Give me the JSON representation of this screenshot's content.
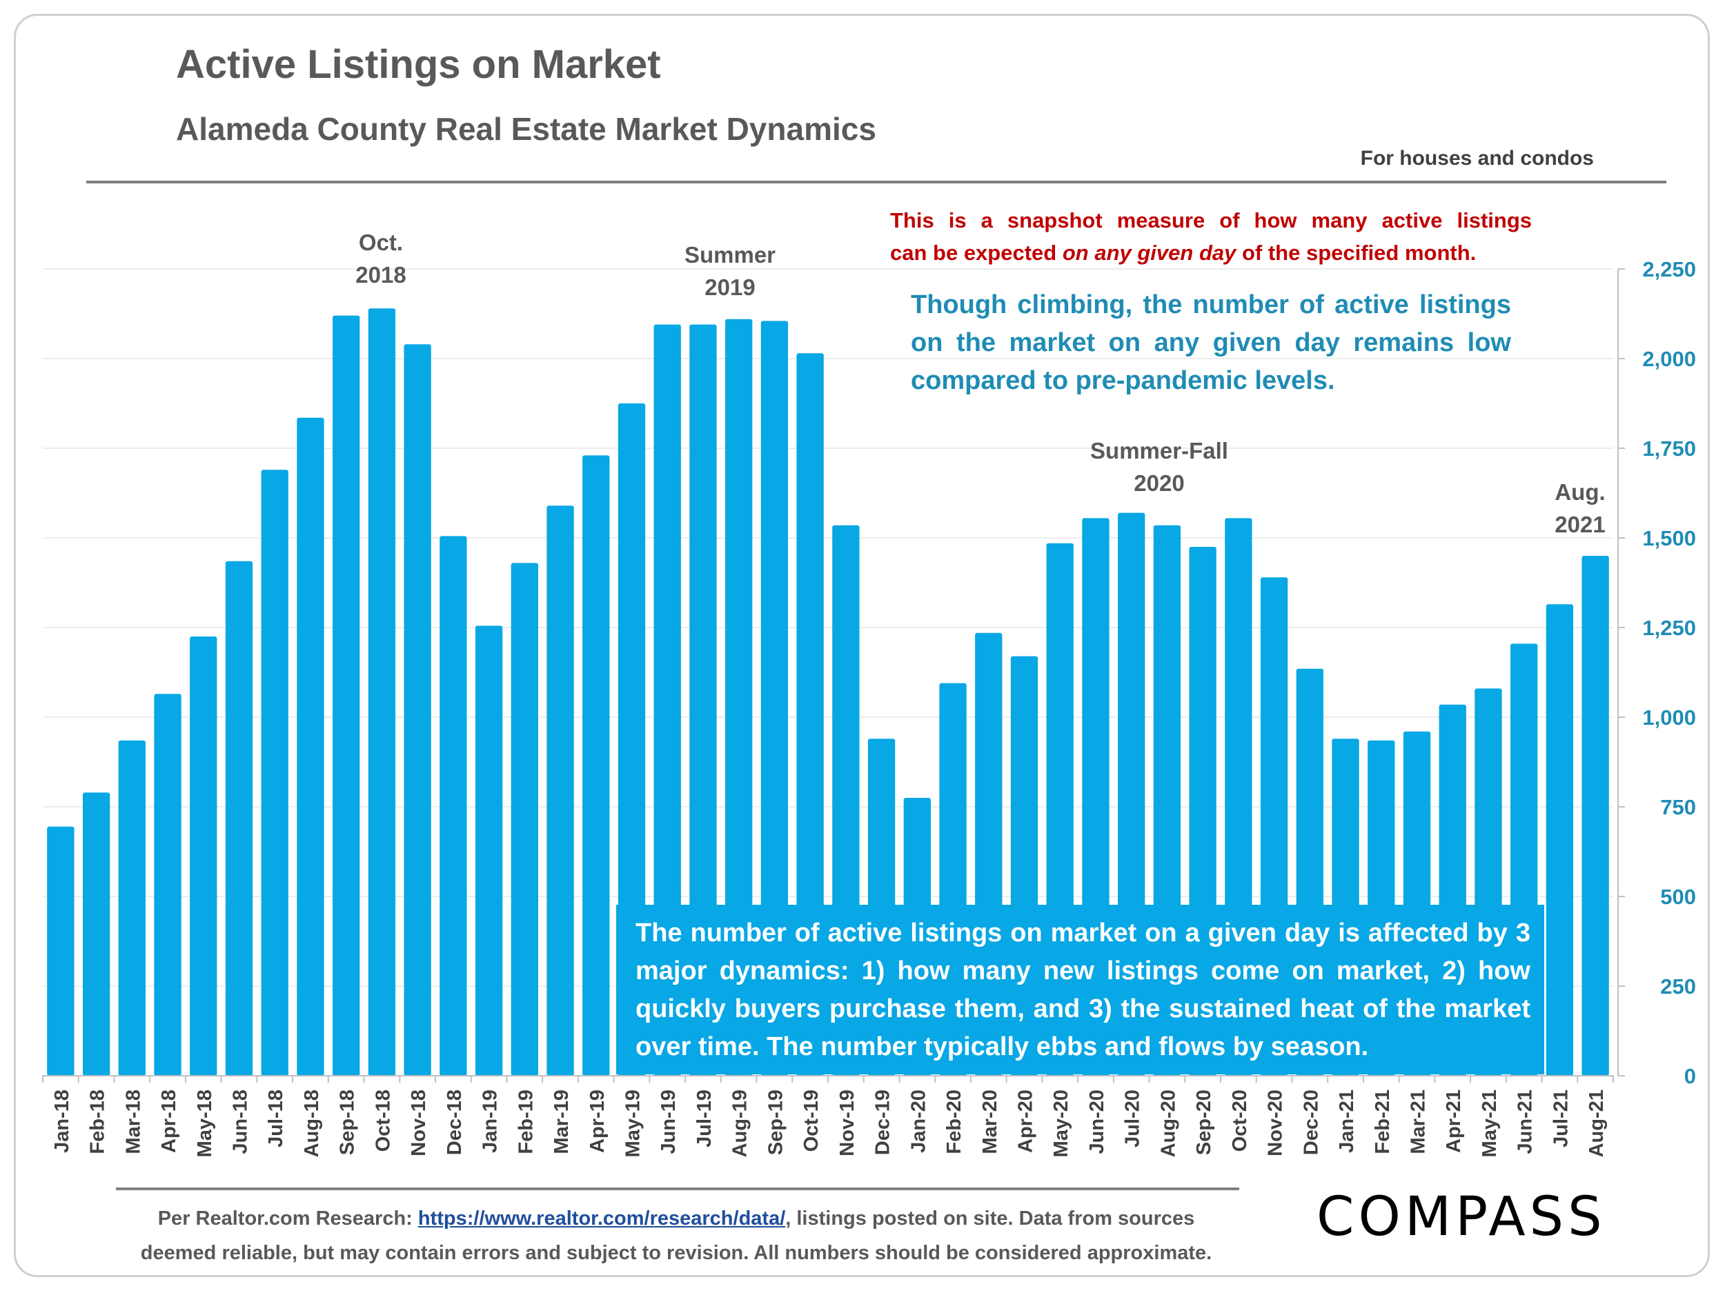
{
  "title": "Active Listings on Market",
  "subtitle": "Alameda County Real Estate Market Dynamics",
  "scope_note": "For houses and condos",
  "note_red": {
    "line1": "This is a snapshot measure of how many active listings",
    "line2_a": "can be expected ",
    "line2_em": "on any given day",
    "line2_b": " of the specified month."
  },
  "note_blue": "Though climbing, the number of active listings on the market on any given day remains low compared to pre-pandemic levels.",
  "note_box": "The number of active listings on market on a given day is affected by 3 major dynamics: 1) how many new listings come on market, 2) how quickly buyers purchase them, and 3) the sustained heat of the market over time. The number typically ebbs and flows by season.",
  "annotations": {
    "oct2018": [
      "Oct.",
      "2018"
    ],
    "summer2019": [
      "Summer",
      "2019"
    ],
    "summerfall2020": [
      "Summer-Fall",
      "2020"
    ],
    "aug2021": [
      "Aug.",
      "2021"
    ]
  },
  "footer": {
    "prefix": "Per Realtor.com Research:  ",
    "link": "https://www.realtor.com/research/data/",
    "suffix": ", listings posted on site. Data from sources",
    "line2": "deemed reliable, but may contain errors and subject to revision. All numbers should be considered approximate."
  },
  "logo": "COMPASS",
  "colors": {
    "bar": "#08a7e5",
    "axis_text": "#1f8cb4",
    "red": "#c00000",
    "title": "#595959"
  },
  "chart_data": {
    "type": "bar",
    "title": "Active Listings on Market",
    "xlabel": "",
    "ylabel": "",
    "y_axis_side": "right",
    "ylim": [
      0,
      2250
    ],
    "yticks": [
      0,
      250,
      500,
      750,
      1000,
      1250,
      1500,
      1750,
      2000,
      2250
    ],
    "ytick_labels": [
      "0",
      "250",
      "500",
      "750",
      "1,000",
      "1,250",
      "1,500",
      "1,750",
      "2,000",
      "2,250"
    ],
    "grid": true,
    "categories": [
      "Jan-18",
      "Feb-18",
      "Mar-18",
      "Apr-18",
      "May-18",
      "Jun-18",
      "Jul-18",
      "Aug-18",
      "Sep-18",
      "Oct-18",
      "Nov-18",
      "Dec-18",
      "Jan-19",
      "Feb-19",
      "Mar-19",
      "Apr-19",
      "May-19",
      "Jun-19",
      "Jul-19",
      "Aug-19",
      "Sep-19",
      "Oct-19",
      "Nov-19",
      "Dec-19",
      "Jan-20",
      "Feb-20",
      "Mar-20",
      "Apr-20",
      "May-20",
      "Jun-20",
      "Jul-20",
      "Aug-20",
      "Sep-20",
      "Oct-20",
      "Nov-20",
      "Dec-20",
      "Jan-21",
      "Feb-21",
      "Mar-21",
      "Apr-21",
      "May-21",
      "Jun-21",
      "Jul-21",
      "Aug-21"
    ],
    "values": [
      695,
      790,
      935,
      1065,
      1225,
      1435,
      1690,
      1835,
      2120,
      2140,
      2040,
      1505,
      1255,
      1430,
      1590,
      1730,
      1875,
      2095,
      2095,
      2110,
      2105,
      2015,
      1535,
      940,
      775,
      1095,
      1235,
      1170,
      1485,
      1555,
      1570,
      1535,
      1475,
      1555,
      1390,
      1135,
      940,
      935,
      960,
      1035,
      1080,
      1205,
      1315,
      1450
    ]
  }
}
